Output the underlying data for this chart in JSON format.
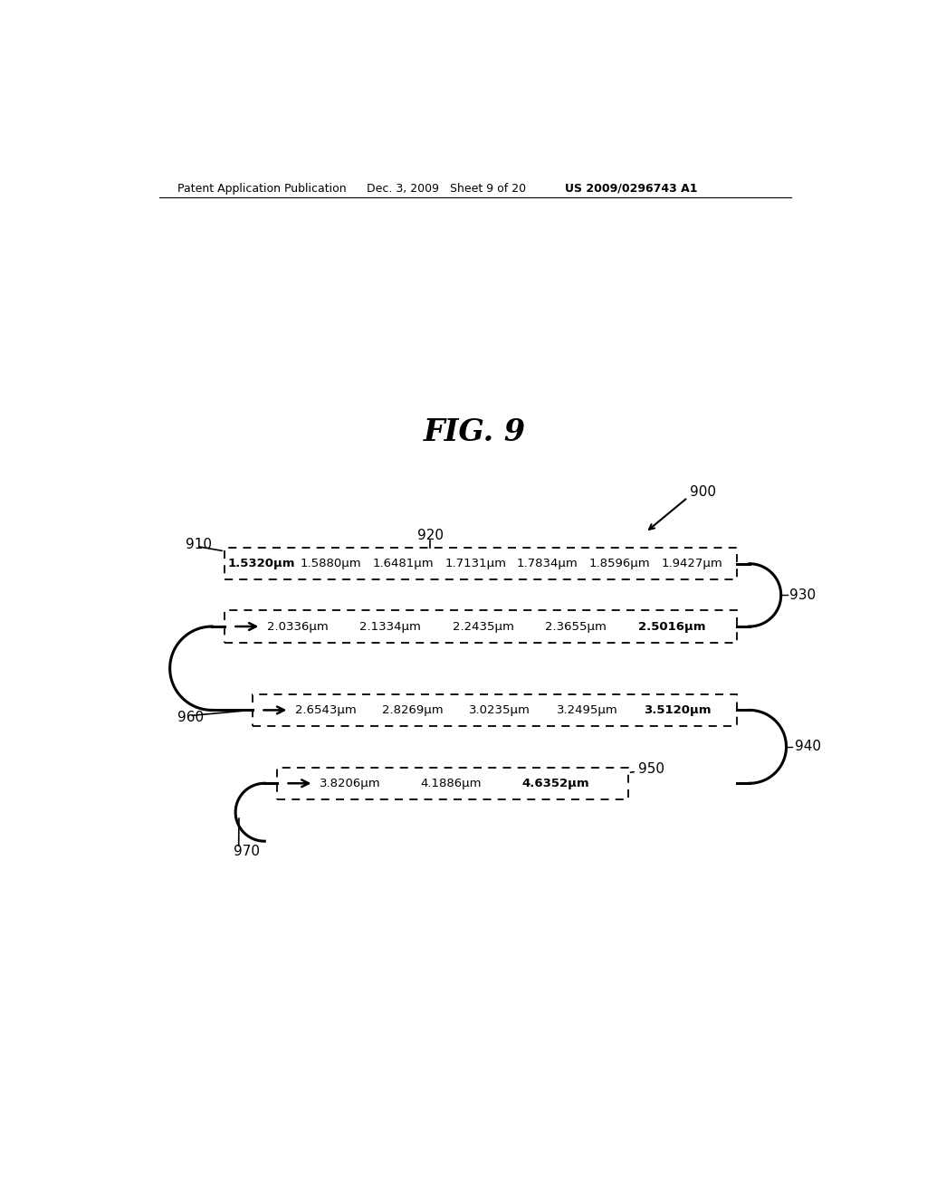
{
  "title": "FIG. 9",
  "header_left": "Patent Application Publication",
  "header_mid": "Dec. 3, 2009   Sheet 9 of 20",
  "header_right": "US 2009/0296743 A1",
  "figure_label": "900",
  "box1_label": "920",
  "box1_ref": "910",
  "box1_values": [
    "1.5320μm",
    "1.5880μm",
    "1.6481μm",
    "1.7131μm",
    "1.7834μm",
    "1.8596μm",
    "1.9427μm"
  ],
  "box1_bold": "1.5320μm",
  "box2_label": "930",
  "box2_values": [
    "2.0336μm",
    "2.1334μm",
    "2.2435μm",
    "2.3655μm",
    "2.5016μm"
  ],
  "box2_bold": "2.5016μm",
  "box3_label": "940",
  "box3_ref": "960",
  "box3_values": [
    "2.6543μm",
    "2.8269μm",
    "3.0235μm",
    "3.2495μm",
    "3.5120μm"
  ],
  "box3_bold": "3.5120μm",
  "box4_label": "950",
  "box4_ref": "970",
  "box4_values": [
    "3.8206μm",
    "4.1886μm",
    "4.6352μm"
  ],
  "box4_bold": "4.6352μm",
  "bg_color": "#ffffff",
  "text_color": "#000000"
}
